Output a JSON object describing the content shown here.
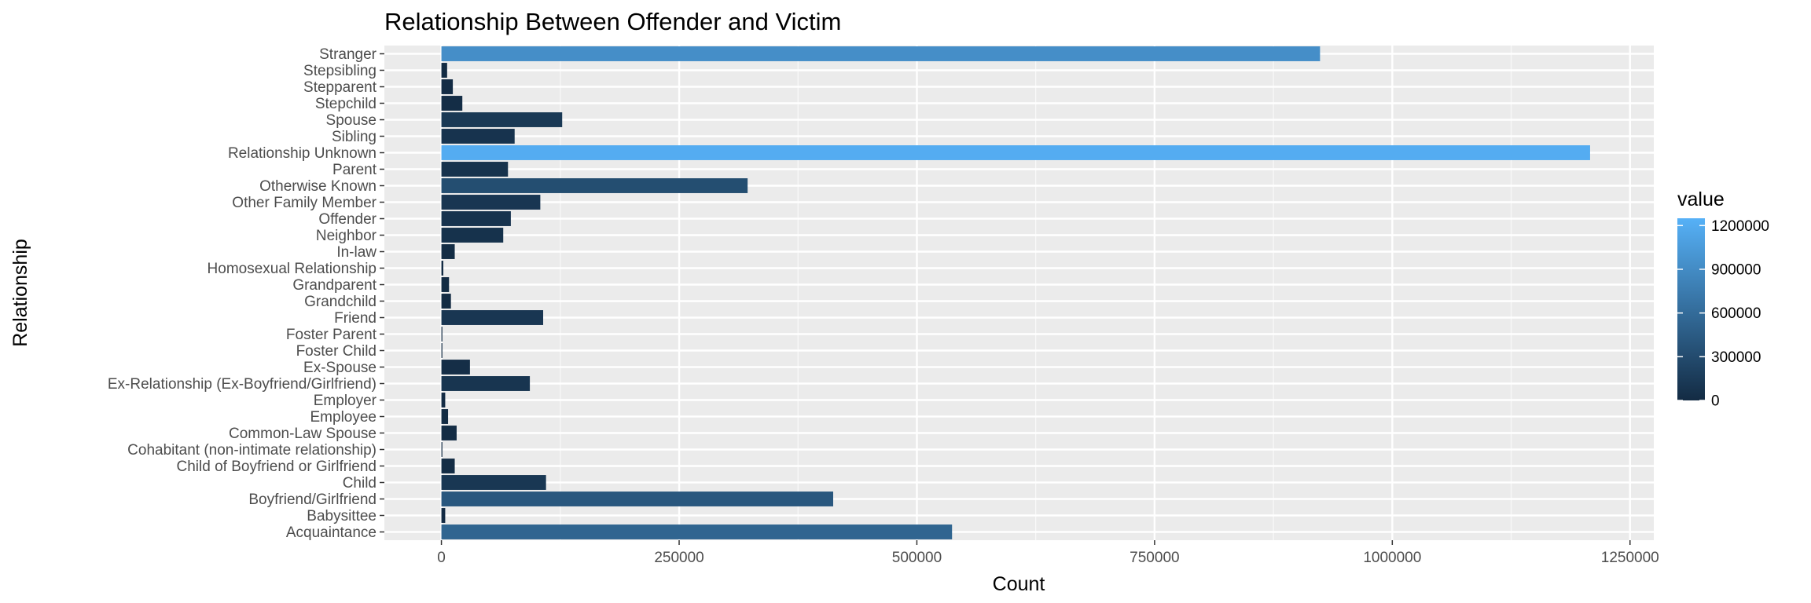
{
  "chart_data": {
    "type": "bar",
    "orientation": "horizontal",
    "title": "Relationship Between Offender and Victim",
    "xlabel": "Count",
    "ylabel": "Relationship",
    "xlim": [
      -60000,
      1275000
    ],
    "xticks": [
      0,
      250000,
      500000,
      750000,
      1000000,
      1250000
    ],
    "xtick_labels": [
      "0",
      "250000",
      "500000",
      "750000",
      "1000000",
      "1250000"
    ],
    "grid": true,
    "categories": [
      "Acquaintance",
      "Babysittee",
      "Boyfriend/Girlfriend",
      "Child",
      "Child of Boyfriend or Girlfriend",
      "Cohabitant (non-intimate relationship)",
      "Common-Law Spouse",
      "Employee",
      "Employer",
      "Ex-Relationship (Ex-Boyfriend/Girlfriend)",
      "Ex-Spouse",
      "Foster Child",
      "Foster Parent",
      "Friend",
      "Grandchild",
      "Grandparent",
      "Homosexual Relationship",
      "In-law",
      "Neighbor",
      "Offender",
      "Other Family Member",
      "Otherwise Known",
      "Parent",
      "Relationship Unknown",
      "Sibling",
      "Spouse",
      "Stepchild",
      "Stepparent",
      "Stepsibling",
      "Stranger"
    ],
    "values": [
      537000,
      4000,
      412000,
      110000,
      14000,
      1000,
      16000,
      7000,
      4000,
      93000,
      30000,
      1000,
      1000,
      107000,
      10000,
      8000,
      2000,
      14000,
      65000,
      73000,
      104000,
      322000,
      70000,
      1208000,
      77000,
      127000,
      22000,
      12000,
      6000,
      924000
    ],
    "legend": {
      "title": "value",
      "placement": "right",
      "breaks": [
        0,
        300000,
        600000,
        900000,
        1200000
      ],
      "break_labels": [
        "0",
        "300000",
        "600000",
        "900000",
        "1200000"
      ],
      "color_low": "#132B43",
      "color_high": "#56B1F7",
      "range": [
        0,
        1250000
      ]
    },
    "panel_color": "#EBEBEB",
    "grid_color": "#FFFFFF"
  }
}
